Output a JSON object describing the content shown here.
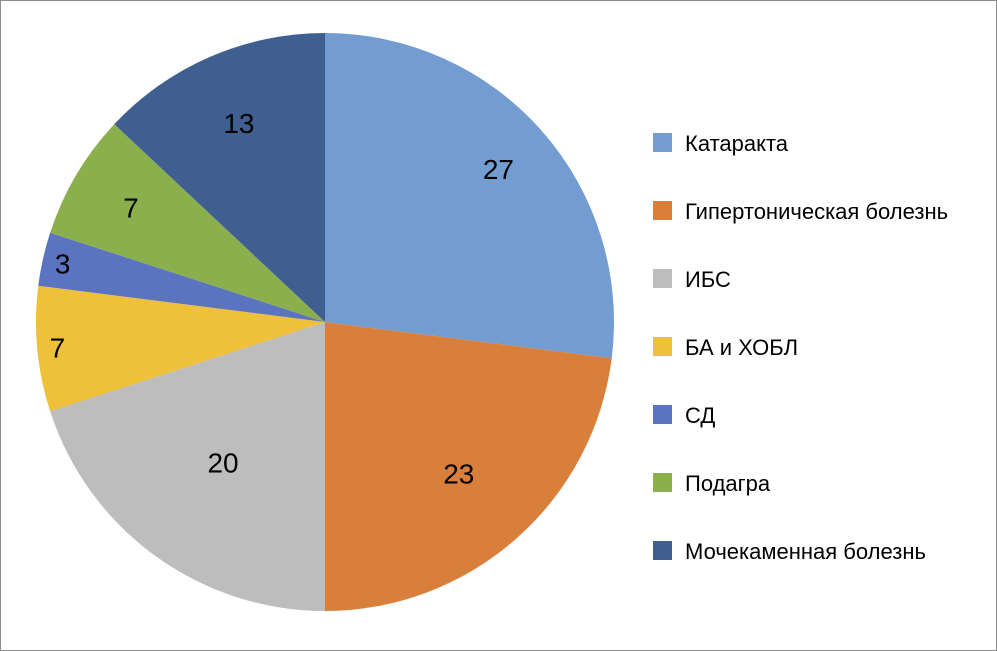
{
  "chart_data": {
    "type": "pie",
    "title": "",
    "categories": [
      "Катаракта",
      "Гипертоническая болезнь",
      "ИБС",
      "БА и ХОБЛ",
      "СД",
      "Подагра",
      "Мочекаменная болезнь"
    ],
    "values": [
      27,
      23,
      20,
      7,
      3,
      7,
      13
    ],
    "data_labels": [
      "27",
      "23",
      "20",
      "7",
      "3",
      "7",
      "13"
    ],
    "colors": [
      "#739cd1",
      "#d8803b",
      "#bdbdbd",
      "#efc03a",
      "#5b74bf",
      "#8caf4e",
      "#3e5f8f"
    ],
    "start_angle": "12 o'clock",
    "direction": "clockwise",
    "legend_position": "right"
  }
}
